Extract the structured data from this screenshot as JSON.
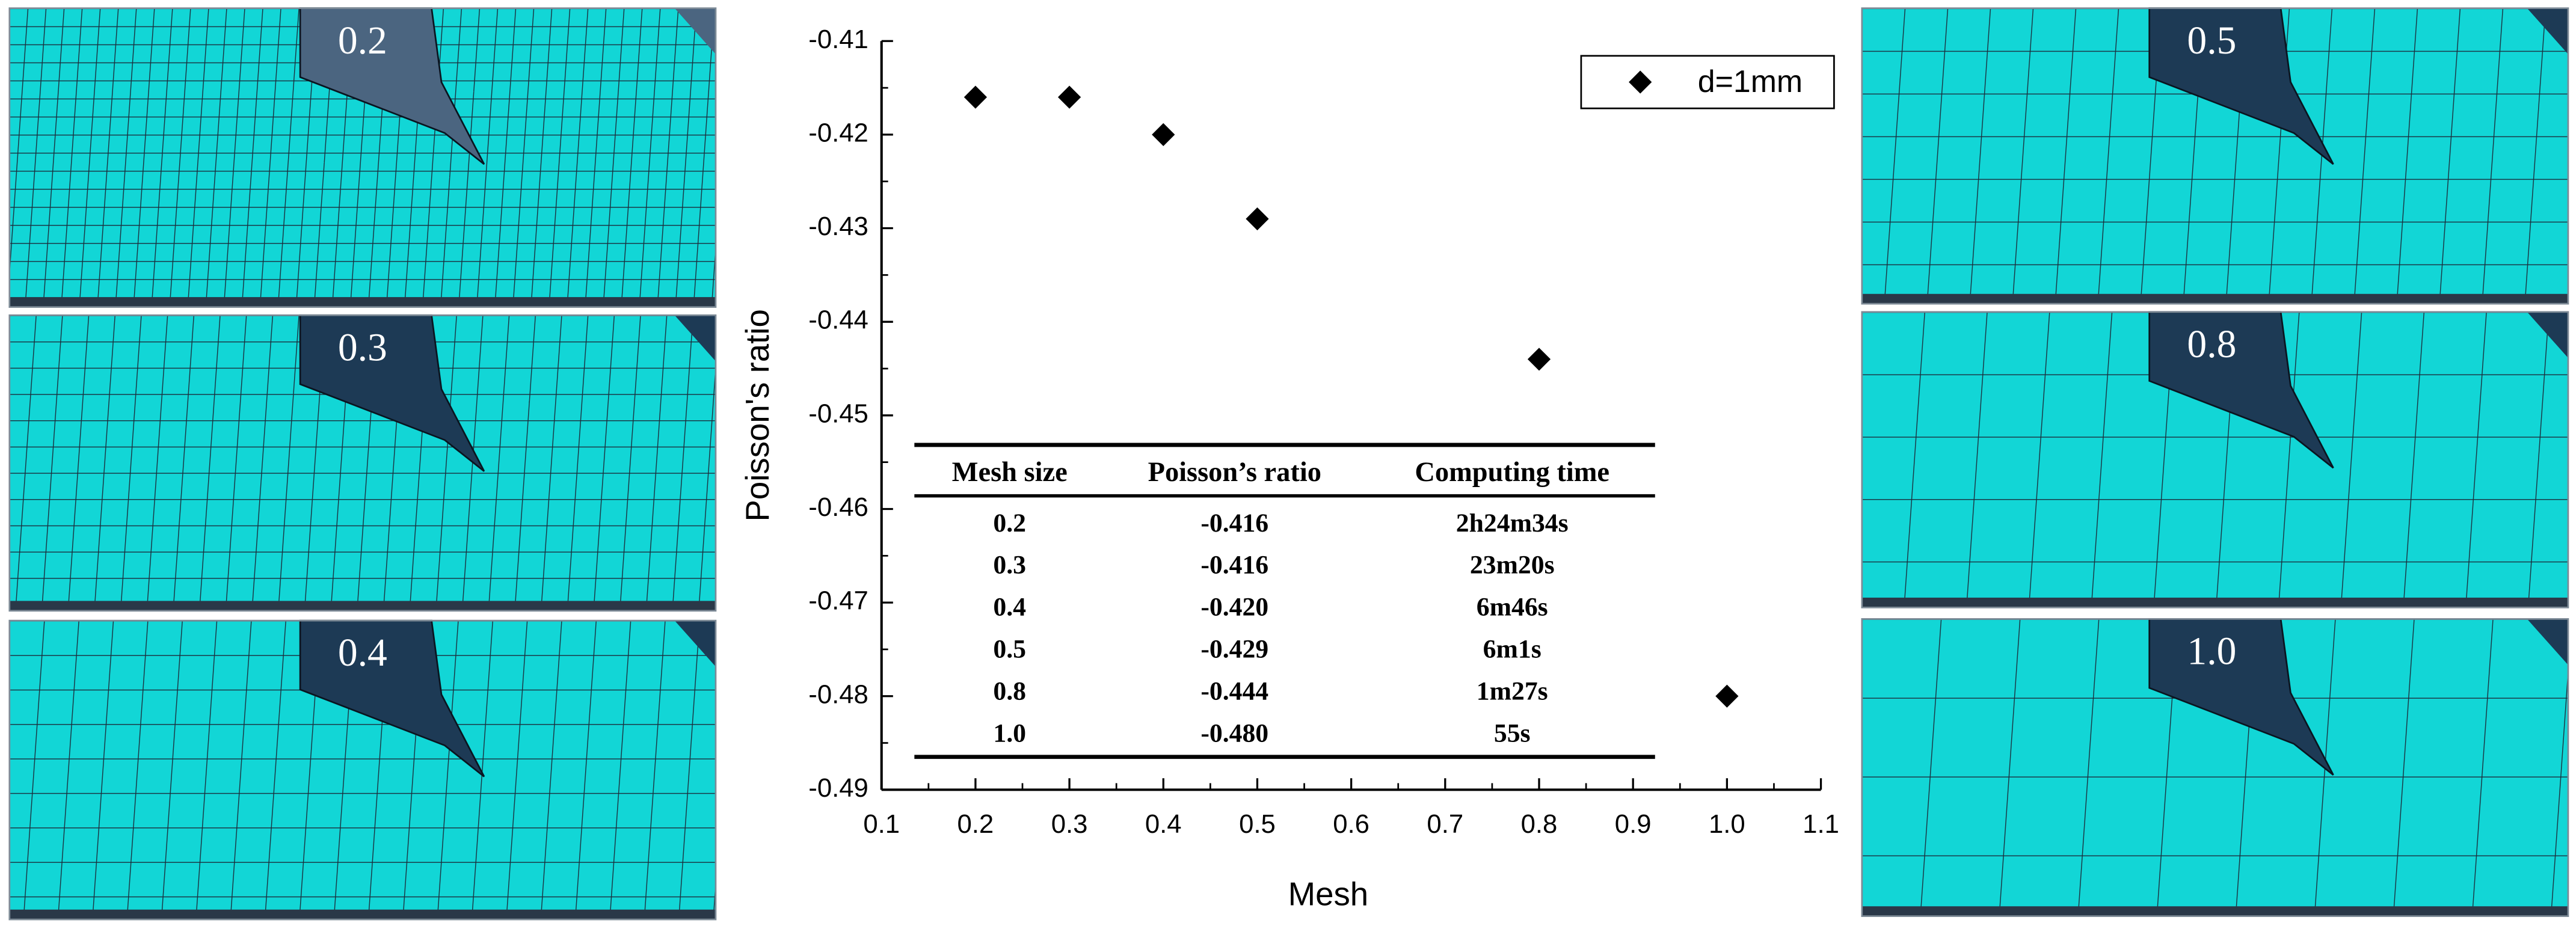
{
  "chart_data": {
    "type": "scatter",
    "x_label": "Mesh",
    "y_label": "Poisson's ratio",
    "x": [
      0.2,
      0.3,
      0.4,
      0.5,
      0.8,
      1.0
    ],
    "series": [
      {
        "name": "d=1mm",
        "color": "#000000",
        "values": [
          -0.416,
          -0.416,
          -0.42,
          -0.429,
          -0.444,
          -0.48
        ]
      }
    ],
    "xlim": [
      0.1,
      1.1
    ],
    "xticks": [
      0.1,
      0.2,
      0.3,
      0.4,
      0.5,
      0.6,
      0.7,
      0.8,
      0.9,
      {
        "value": 1,
        "label": "1.0"
      },
      1.1
    ],
    "ylim": [
      -0.49,
      -0.41
    ],
    "yticks": [
      -0.41,
      -0.42,
      -0.43,
      -0.44,
      -0.45,
      -0.46,
      -0.47,
      -0.48,
      -0.49
    ],
    "legend": "upper right",
    "table": {
      "header": [
        "Mesh size",
        "Poisson’s ratio",
        "Computing time"
      ],
      "rows": [
        [
          "0.2",
          "-0.416",
          "2h24m34s"
        ],
        [
          "0.3",
          "-0.416",
          "23m20s"
        ],
        [
          "0.4",
          "-0.420",
          "6m46s"
        ],
        [
          "0.5",
          "-0.429",
          "6m1s"
        ],
        [
          "0.8",
          "-0.444",
          "1m27s"
        ],
        [
          "1.0",
          "-0.480",
          "55s"
        ]
      ]
    }
  },
  "panels": [
    {
      "label": "0.2"
    },
    {
      "label": "0.3"
    },
    {
      "label": "0.4"
    },
    {
      "label": "0.5"
    },
    {
      "label": "0.8"
    },
    {
      "label": "1.0"
    }
  ]
}
